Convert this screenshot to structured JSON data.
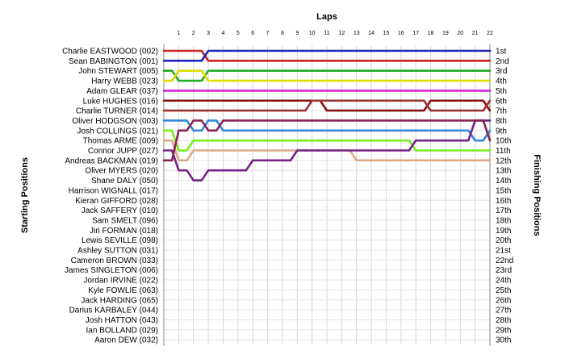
{
  "chart_data": {
    "type": "line",
    "title": "",
    "top_axis_label": "Laps",
    "left_axis_label": "Starting Positions",
    "right_axis_label": "Finishing Positions",
    "laps": [
      1,
      2,
      3,
      4,
      5,
      6,
      7,
      8,
      9,
      10,
      11,
      12,
      13,
      14,
      15,
      16,
      17,
      18,
      19,
      20,
      21,
      22
    ],
    "starting_grid": [
      "Charlie EASTWOOD (002)",
      "Sean BABINGTON (001)",
      "John STEWART (005)",
      "Harry WEBB (023)",
      "Adam GLEAR (037)",
      "Luke HUGHES (016)",
      "Charlie TURNER (014)",
      "Oliver HODGSON (003)",
      "Josh COLLINGS (021)",
      "Thomas ARME (009)",
      "Connor JUPP (027)",
      "Andreas BACKMAN (019)",
      "Oliver MYERS (020)",
      "Shane DALY (050)",
      "Harrison WIGNALL (017)",
      "Kieran GIFFORD (028)",
      "Jack SAFFERY (010)",
      "Sam SMELT (096)",
      "Jiri FORMAN (018)",
      "Lewis SEVILLE (098)",
      "Ashley SUTTON (031)",
      "Cameron BROWN (033)",
      "James SINGLETON (006)",
      "Jordan IRVINE (022)",
      "Kyle FOWLIE (063)",
      "Jack HARDING (065)",
      "Darius KARBALEY (044)",
      "Josh HATTON (043)",
      "Ian BOLLAND (029)",
      "Aaron DEW (032)"
    ],
    "finishing_positions": [
      "1st",
      "2nd",
      "3rd",
      "4th",
      "5th",
      "6th",
      "7th",
      "8th",
      "9th",
      "10th",
      "11th",
      "12th",
      "13th",
      "14th",
      "15th",
      "16th",
      "17th",
      "18th",
      "19th",
      "20th",
      "21st",
      "22nd",
      "23rd",
      "24th",
      "25th",
      "26th",
      "27th",
      "28th",
      "29th",
      "30th"
    ],
    "y_range": [
      1,
      30
    ],
    "grid": true,
    "series": [
      {
        "color": "#cc2222",
        "positions": [
          1,
          1,
          2,
          2,
          2,
          2,
          2,
          2,
          2,
          2,
          2,
          2,
          2,
          2,
          2,
          2,
          2,
          2,
          2,
          2,
          2,
          2
        ]
      },
      {
        "color": "#2222bb",
        "positions": [
          2,
          2,
          1,
          1,
          1,
          1,
          1,
          1,
          1,
          1,
          1,
          1,
          1,
          1,
          1,
          1,
          1,
          1,
          1,
          1,
          1,
          1
        ]
      },
      {
        "color": "#22aa22",
        "positions": [
          4,
          4,
          3,
          3,
          3,
          3,
          3,
          3,
          3,
          3,
          3,
          3,
          3,
          3,
          3,
          3,
          3,
          3,
          3,
          3,
          3,
          3
        ]
      },
      {
        "color": "#dddd00",
        "positions": [
          3,
          3,
          4,
          4,
          4,
          4,
          4,
          4,
          4,
          4,
          4,
          4,
          4,
          4,
          4,
          4,
          4,
          4,
          4,
          4,
          4,
          4
        ]
      },
      {
        "color": "#dd22dd",
        "positions": [
          5,
          5,
          5,
          5,
          5,
          5,
          5,
          5,
          5,
          5,
          5,
          5,
          5,
          5,
          5,
          5,
          5,
          5,
          5,
          5,
          5,
          5
        ]
      },
      {
        "color": "#881111",
        "positions": [
          6,
          6,
          6,
          6,
          6,
          6,
          6,
          6,
          6,
          6,
          7,
          7,
          7,
          7,
          7,
          7,
          7,
          6,
          6,
          6,
          6,
          7
        ]
      },
      {
        "color": "#993333",
        "positions": [
          7,
          7,
          7,
          7,
          7,
          7,
          7,
          7,
          7,
          6,
          6,
          6,
          6,
          6,
          6,
          6,
          6,
          7,
          7,
          7,
          7,
          6
        ]
      },
      {
        "color": "#3388dd",
        "positions": [
          8,
          9,
          8,
          9,
          9,
          9,
          9,
          9,
          9,
          9,
          9,
          9,
          9,
          9,
          9,
          9,
          9,
          9,
          9,
          9,
          10,
          9
        ]
      },
      {
        "color": "#77ee22",
        "positions": [
          11,
          10,
          10,
          10,
          10,
          10,
          10,
          10,
          10,
          10,
          10,
          10,
          10,
          10,
          10,
          10,
          11,
          11,
          11,
          11,
          11,
          11
        ]
      },
      {
        "color": "#ddaa88",
        "positions": [
          12,
          11,
          11,
          11,
          11,
          11,
          11,
          11,
          11,
          11,
          11,
          11,
          12,
          12,
          12,
          12,
          12,
          12,
          12,
          12,
          12,
          12
        ]
      },
      {
        "color": "#772288",
        "positions": [
          13,
          14,
          13,
          13,
          13,
          12,
          12,
          12,
          11,
          11,
          11,
          11,
          11,
          11,
          11,
          11,
          10,
          10,
          10,
          10,
          8,
          8
        ]
      },
      {
        "color": "#882255",
        "positions": [
          9,
          8,
          9,
          8,
          8,
          8,
          8,
          8,
          8,
          8,
          8,
          8,
          8,
          8,
          8,
          8,
          8,
          8,
          8,
          8,
          8,
          10
        ]
      }
    ]
  }
}
